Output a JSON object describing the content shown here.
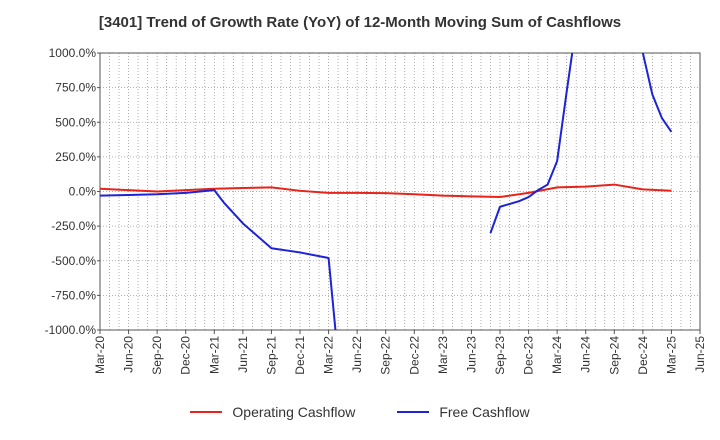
{
  "colors": {
    "operating": "#e8241a",
    "free": "#1d23d6",
    "grid": "#9a9a9a",
    "axis": "#555555"
  },
  "chart_data": {
    "type": "line",
    "title": "[3401]  Trend of Growth Rate (YoY) of 12-Month Moving Sum of Cashflows",
    "xlabel": "",
    "ylabel": "",
    "ylim": [
      -1000,
      1000
    ],
    "y_ticks": [
      -1000,
      -750,
      -500,
      -250,
      0,
      250,
      500,
      750,
      1000
    ],
    "y_tick_labels": [
      "-1000.0%",
      "-750.0%",
      "-500.0%",
      "-250.0%",
      "0.0%",
      "250.0%",
      "500.0%",
      "750.0%",
      "1000.0%"
    ],
    "x_range": [
      "2020-03",
      "2025-06"
    ],
    "x_tick_labels": [
      "Mar-20",
      "Jun-20",
      "Sep-20",
      "Dec-20",
      "Mar-21",
      "Jun-21",
      "Sep-21",
      "Dec-21",
      "Mar-22",
      "Jun-22",
      "Sep-22",
      "Dec-22",
      "Mar-23",
      "Jun-23",
      "Sep-23",
      "Dec-23",
      "Mar-24",
      "Jun-24",
      "Sep-24",
      "Dec-24",
      "Mar-25",
      "Jun-25"
    ],
    "grid": true,
    "legend_position": "bottom",
    "series": [
      {
        "name": "Operating Cashflow",
        "color": "#e8241a",
        "points": [
          [
            "2020-03",
            20
          ],
          [
            "2020-06",
            10
          ],
          [
            "2020-09",
            0
          ],
          [
            "2020-12",
            10
          ],
          [
            "2021-03",
            20
          ],
          [
            "2021-06",
            25
          ],
          [
            "2021-09",
            30
          ],
          [
            "2021-12",
            5
          ],
          [
            "2022-03",
            -10
          ],
          [
            "2022-06",
            -10
          ],
          [
            "2022-09",
            -12
          ],
          [
            "2022-12",
            -20
          ],
          [
            "2023-03",
            -30
          ],
          [
            "2023-06",
            -35
          ],
          [
            "2023-09",
            -40
          ],
          [
            "2023-12",
            -10
          ],
          [
            "2024-03",
            30
          ],
          [
            "2024-06",
            35
          ],
          [
            "2024-09",
            50
          ],
          [
            "2024-12",
            15
          ],
          [
            "2025-03",
            5
          ]
        ]
      },
      {
        "name": "Free Cashflow",
        "color": "#1d23d6",
        "segments": [
          [
            [
              "2020-03",
              -30
            ],
            [
              "2020-06",
              -25
            ],
            [
              "2020-09",
              -20
            ],
            [
              "2020-12",
              -10
            ],
            [
              "2021-03",
              10
            ],
            [
              "2021-04",
              -80
            ],
            [
              "2021-06",
              -230
            ],
            [
              "2021-09",
              -410
            ],
            [
              "2021-12",
              -440
            ],
            [
              "2022-03",
              -480
            ],
            [
              "2022-04",
              -1200
            ]
          ],
          [
            [
              "2023-08",
              -300
            ],
            [
              "2023-09",
              -110
            ],
            [
              "2023-11",
              -70
            ],
            [
              "2023-12",
              -40
            ],
            [
              "2024-01",
              10
            ],
            [
              "2024-02",
              50
            ],
            [
              "2024-03",
              220
            ],
            [
              "2024-04",
              720
            ],
            [
              "2024-05",
              1200
            ]
          ],
          [
            [
              "2024-11",
              1200
            ],
            [
              "2024-12",
              1000
            ],
            [
              "2025-01",
              700
            ],
            [
              "2025-02",
              530
            ],
            [
              "2025-03",
              430
            ]
          ]
        ]
      }
    ]
  }
}
